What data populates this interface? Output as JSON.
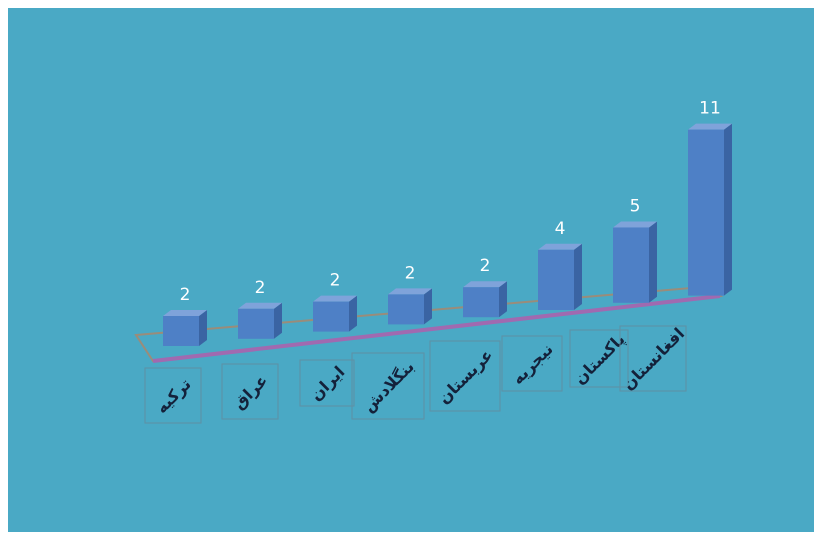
{
  "colors": {
    "background": "#4aa9c5",
    "bar_front": "#4e80c6",
    "bar_top": "#7fa3da",
    "bar_side": "#3a64a3",
    "floor_back": "#9a8c7a",
    "floor_front": "#a06ab0",
    "value_text": "#ffffff",
    "label_text": "#14213a"
  },
  "chart_data": {
    "type": "bar",
    "categories": [
      "ترکیه",
      "عراق",
      "ایران",
      "بنگلادش",
      "عربستان",
      "نیجریه",
      "پاکستان",
      "افغانستان"
    ],
    "values": [
      2,
      2,
      2,
      2,
      2,
      4,
      5,
      11
    ],
    "data_labels": [
      "2",
      "2",
      "2",
      "2",
      "2",
      "4",
      "5",
      "11"
    ],
    "title": "",
    "xlabel": "",
    "ylabel": "",
    "ylim": [
      0,
      11
    ],
    "grid": false,
    "legend": "none",
    "style": "3d-column"
  }
}
